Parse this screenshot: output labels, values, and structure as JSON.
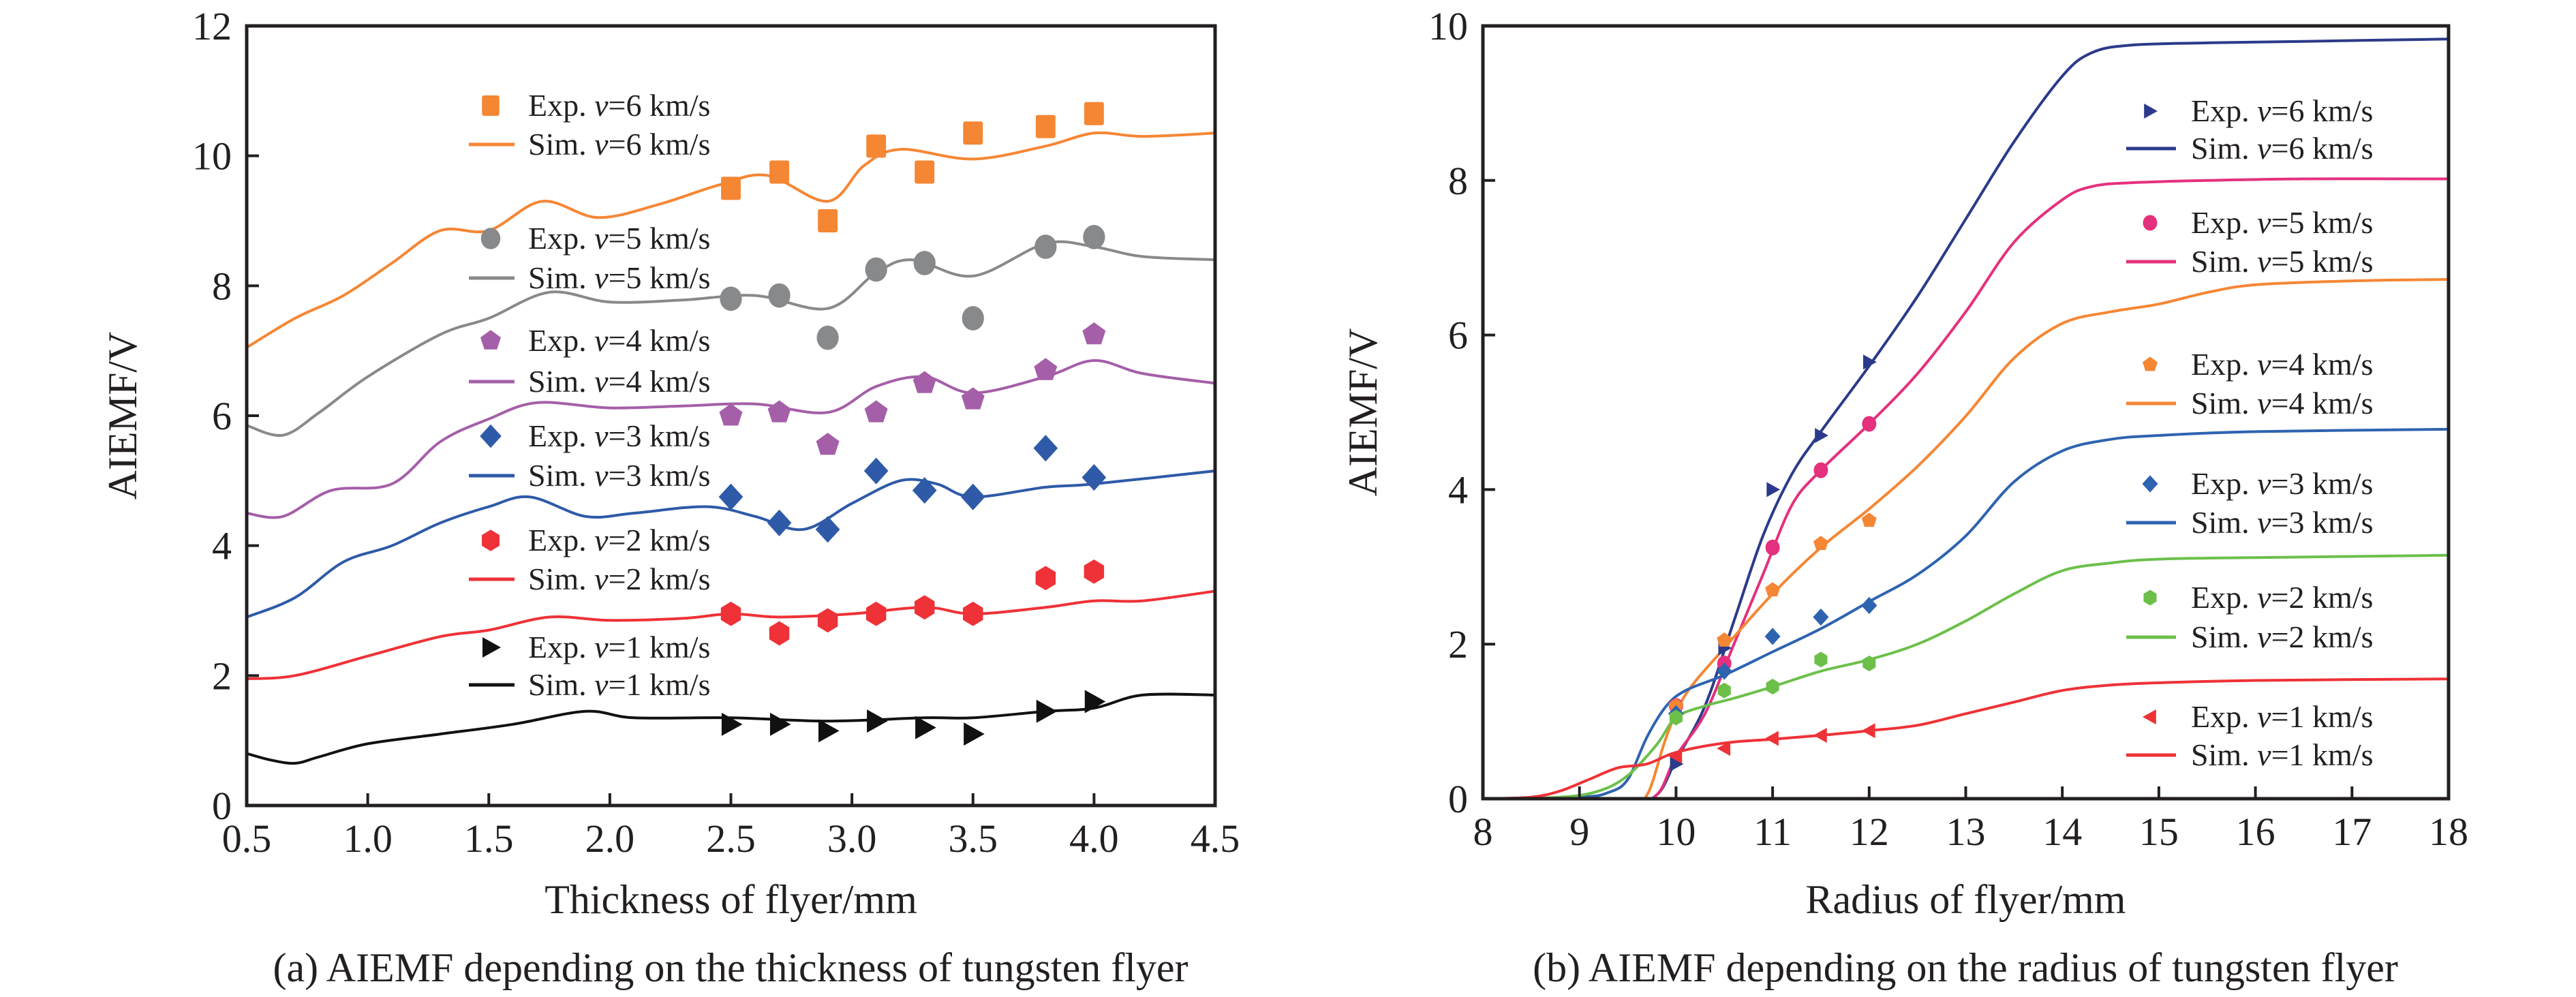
{
  "chart_data": [
    {
      "type": "line",
      "panel": "a",
      "title": "",
      "caption": "(a) AIEMF depending on the thickness of tungsten flyer",
      "xlabel": "Thickness of flyer/mm",
      "ylabel": "AIEMF/V",
      "xlim": [
        0.5,
        4.5
      ],
      "ylim": [
        0,
        12
      ],
      "xticks": [
        0.5,
        1.0,
        1.5,
        2.0,
        2.5,
        3.0,
        3.5,
        4.0,
        4.5
      ],
      "xtick_labels": [
        "0.5",
        "1.0",
        "1.5",
        "2.0",
        "2.5",
        "3.0",
        "3.5",
        "4.0",
        "4.5"
      ],
      "yticks": [
        0,
        2,
        4,
        6,
        8,
        10,
        12
      ],
      "ytick_labels": [
        "0",
        "2",
        "4",
        "6",
        "8",
        "10",
        "12"
      ],
      "grid": false,
      "legend_position": "top-left",
      "series": [
        {
          "velocity": "6",
          "color": "#f58634",
          "marker": "square",
          "exp_label": "Exp. ",
          "sim_label": "Sim. ",
          "v_symbol": "v",
          "v_suffix": "=6 km/s",
          "exp": {
            "x": [
              2.5,
              2.7,
              2.9,
              3.1,
              3.3,
              3.5,
              3.8,
              4.0
            ],
            "y": [
              9.5,
              9.75,
              9.0,
              10.15,
              9.75,
              10.35,
              10.45,
              10.65
            ]
          },
          "sim": {
            "x": [
              0.5,
              0.7,
              0.9,
              1.1,
              1.3,
              1.5,
              1.72,
              1.95,
              2.2,
              2.45,
              2.65,
              2.9,
              3.05,
              3.2,
              3.5,
              3.8,
              4.0,
              4.2,
              4.5
            ],
            "y": [
              7.05,
              7.5,
              7.85,
              8.35,
              8.85,
              8.85,
              9.3,
              9.05,
              9.25,
              9.55,
              9.7,
              9.3,
              9.85,
              10.1,
              9.95,
              10.15,
              10.35,
              10.3,
              10.35
            ]
          }
        },
        {
          "velocity": "5",
          "color": "#88898b",
          "marker": "circle",
          "exp_label": "Exp. ",
          "sim_label": "Sim. ",
          "v_symbol": "v",
          "v_suffix": "=5 km/s",
          "exp": {
            "x": [
              2.5,
              2.7,
              2.9,
              3.1,
              3.3,
              3.5,
              3.8,
              4.0
            ],
            "y": [
              7.8,
              7.85,
              7.2,
              8.25,
              8.35,
              7.5,
              8.6,
              8.75
            ]
          },
          "sim": {
            "x": [
              0.5,
              0.65,
              0.8,
              1.0,
              1.3,
              1.5,
              1.75,
              2.0,
              2.3,
              2.6,
              2.9,
              3.1,
              3.25,
              3.5,
              3.8,
              4.0,
              4.2,
              4.5
            ],
            "y": [
              5.85,
              5.7,
              6.05,
              6.6,
              7.25,
              7.5,
              7.9,
              7.75,
              7.78,
              7.85,
              7.65,
              8.2,
              8.4,
              8.15,
              8.65,
              8.6,
              8.45,
              8.4
            ]
          }
        },
        {
          "velocity": "4",
          "color": "#a55fa8",
          "marker": "pentagon",
          "exp_label": "Exp. ",
          "sim_label": "Sim. ",
          "v_symbol": "v",
          "v_suffix": "=4 km/s",
          "exp": {
            "x": [
              2.5,
              2.7,
              2.9,
              3.1,
              3.3,
              3.5,
              3.8,
              4.0
            ],
            "y": [
              6.0,
              6.05,
              5.55,
              6.05,
              6.5,
              6.25,
              6.7,
              7.25
            ]
          },
          "sim": {
            "x": [
              0.5,
              0.65,
              0.85,
              1.1,
              1.3,
              1.5,
              1.7,
              2.0,
              2.3,
              2.6,
              2.9,
              3.1,
              3.3,
              3.5,
              3.8,
              4.0,
              4.2,
              4.5
            ],
            "y": [
              4.5,
              4.45,
              4.85,
              4.95,
              5.6,
              5.95,
              6.2,
              6.12,
              6.15,
              6.18,
              6.05,
              6.45,
              6.6,
              6.35,
              6.6,
              6.85,
              6.65,
              6.5
            ]
          }
        },
        {
          "velocity": "3",
          "color": "#2e5aa8",
          "marker": "diamond",
          "exp_label": "Exp. ",
          "sim_label": "Sim. ",
          "v_symbol": "v",
          "v_suffix": "=3 km/s",
          "exp": {
            "x": [
              2.5,
              2.7,
              2.9,
              3.1,
              3.3,
              3.5,
              3.8,
              4.0
            ],
            "y": [
              4.75,
              4.35,
              4.25,
              5.15,
              4.85,
              4.75,
              5.5,
              5.05
            ]
          },
          "sim": {
            "x": [
              0.5,
              0.7,
              0.9,
              1.1,
              1.3,
              1.5,
              1.67,
              1.9,
              2.1,
              2.4,
              2.6,
              2.8,
              3.0,
              3.2,
              3.35,
              3.5,
              3.8,
              4.0,
              4.5
            ],
            "y": [
              2.9,
              3.2,
              3.75,
              4.0,
              4.35,
              4.6,
              4.75,
              4.45,
              4.5,
              4.6,
              4.45,
              4.25,
              4.65,
              5.0,
              4.95,
              4.75,
              4.9,
              4.95,
              5.15
            ]
          }
        },
        {
          "velocity": "2",
          "color": "#ee3237",
          "marker": "hexagon",
          "exp_label": "Exp. ",
          "sim_label": "Sim. ",
          "v_symbol": "v",
          "v_suffix": "=2 km/s",
          "exp": {
            "x": [
              2.5,
              2.7,
              2.9,
              3.1,
              3.3,
              3.5,
              3.8,
              4.0
            ],
            "y": [
              2.95,
              2.65,
              2.85,
              2.95,
              3.05,
              2.95,
              3.5,
              3.6
            ]
          },
          "sim": {
            "x": [
              0.5,
              0.7,
              1.0,
              1.3,
              1.5,
              1.75,
              2.0,
              2.3,
              2.5,
              2.7,
              3.0,
              3.3,
              3.5,
              3.8,
              4.0,
              4.2,
              4.5
            ],
            "y": [
              1.95,
              2.0,
              2.3,
              2.6,
              2.7,
              2.9,
              2.85,
              2.88,
              2.95,
              2.9,
              2.95,
              3.05,
              2.95,
              3.05,
              3.15,
              3.15,
              3.3
            ]
          }
        },
        {
          "velocity": "1",
          "color": "#111111",
          "marker": "triangle-right",
          "exp_label": "Exp. ",
          "sim_label": "Sim. ",
          "v_symbol": "v",
          "v_suffix": "=1 km/s",
          "exp": {
            "x": [
              2.5,
              2.7,
              2.9,
              3.1,
              3.3,
              3.5,
              3.8,
              4.0
            ],
            "y": [
              1.25,
              1.25,
              1.15,
              1.3,
              1.2,
              1.1,
              1.45,
              1.6
            ]
          },
          "sim": {
            "x": [
              0.5,
              0.6,
              0.7,
              0.8,
              1.0,
              1.3,
              1.6,
              1.9,
              2.1,
              2.5,
              2.9,
              3.3,
              3.5,
              3.8,
              4.0,
              4.2,
              4.5
            ],
            "y": [
              0.8,
              0.7,
              0.65,
              0.75,
              0.95,
              1.1,
              1.25,
              1.45,
              1.35,
              1.35,
              1.3,
              1.35,
              1.35,
              1.45,
              1.5,
              1.7,
              1.7
            ]
          }
        }
      ]
    },
    {
      "type": "line",
      "panel": "b",
      "title": "",
      "caption": "(b) AIEMF depending on the radius of tungsten flyer",
      "xlabel": "Radius of flyer/mm",
      "ylabel": "AIEMF/V",
      "xlim": [
        8,
        18
      ],
      "ylim": [
        0,
        10
      ],
      "xticks": [
        8,
        9,
        10,
        11,
        12,
        13,
        14,
        15,
        16,
        17,
        18
      ],
      "xtick_labels": [
        "8",
        "9",
        "10",
        "11",
        "12",
        "13",
        "14",
        "15",
        "16",
        "17",
        "18"
      ],
      "yticks": [
        0,
        2,
        4,
        6,
        8,
        10
      ],
      "ytick_labels": [
        "0",
        "2",
        "4",
        "6",
        "8",
        "10"
      ],
      "grid": false,
      "legend_position": "right",
      "series": [
        {
          "velocity": "6",
          "color": "#2b3a8a",
          "marker": "triangle-right",
          "exp_label": "Exp. ",
          "sim_label": "Sim. ",
          "v_symbol": "v",
          "v_suffix": "=6 km/s",
          "exp": {
            "x": [
              10,
              10.5,
              11,
              11.5,
              12
            ],
            "y": [
              0.45,
              1.95,
              4.0,
              4.7,
              5.65
            ]
          },
          "sim": {
            "x": [
              8,
              9.5,
              9.8,
              10.0,
              10.3,
              10.6,
              10.9,
              11.2,
              11.5,
              12.0,
              12.5,
              13.0,
              13.5,
              14.0,
              14.3,
              14.7,
              15.5,
              16.5,
              18
            ],
            "y": [
              0,
              0,
              0.05,
              0.5,
              1.2,
              2.3,
              3.4,
              4.2,
              4.75,
              5.6,
              6.5,
              7.5,
              8.5,
              9.35,
              9.65,
              9.75,
              9.78,
              9.8,
              9.83
            ]
          }
        },
        {
          "velocity": "5",
          "color": "#e5307d",
          "marker": "circle",
          "exp_label": "Exp. ",
          "sim_label": "Sim. ",
          "v_symbol": "v",
          "v_suffix": "=5 km/s",
          "exp": {
            "x": [
              10,
              10.5,
              11,
              11.5,
              12
            ],
            "y": [
              1.2,
              1.75,
              3.25,
              4.25,
              4.85
            ]
          },
          "sim": {
            "x": [
              8,
              9.5,
              9.8,
              10.0,
              10.3,
              10.6,
              10.9,
              11.2,
              11.5,
              12.0,
              12.5,
              13.0,
              13.5,
              14.0,
              14.3,
              14.7,
              15.5,
              16.5,
              18
            ],
            "y": [
              0,
              0,
              0.05,
              0.55,
              1.1,
              2.0,
              2.9,
              3.8,
              4.25,
              4.85,
              5.5,
              6.3,
              7.2,
              7.75,
              7.92,
              7.97,
              8.0,
              8.02,
              8.02
            ]
          }
        },
        {
          "velocity": "4",
          "color": "#f58634",
          "marker": "pentagon",
          "exp_label": "Exp. ",
          "sim_label": "Sim. ",
          "v_symbol": "v",
          "v_suffix": "=4 km/s",
          "exp": {
            "x": [
              10,
              10.5,
              11,
              11.5,
              12
            ],
            "y": [
              1.2,
              2.05,
              2.7,
              3.3,
              3.6
            ]
          },
          "sim": {
            "x": [
              8,
              9.5,
              9.7,
              9.9,
              10.1,
              10.5,
              11.0,
              11.5,
              12.0,
              12.5,
              13.0,
              13.5,
              14.0,
              14.5,
              15.0,
              15.5,
              16.0,
              17.0,
              18
            ],
            "y": [
              0,
              0,
              0.05,
              0.8,
              1.35,
              1.95,
              2.65,
              3.25,
              3.75,
              4.3,
              4.95,
              5.7,
              6.15,
              6.3,
              6.4,
              6.55,
              6.65,
              6.7,
              6.72
            ]
          }
        },
        {
          "velocity": "3",
          "color": "#2e63b0",
          "marker": "diamond",
          "exp_label": "Exp. ",
          "sim_label": "Sim. ",
          "v_symbol": "v",
          "v_suffix": "=3 km/s",
          "exp": {
            "x": [
              10,
              10.5,
              11,
              11.5,
              12
            ],
            "y": [
              1.1,
              1.65,
              2.1,
              2.35,
              2.5
            ]
          },
          "sim": {
            "x": [
              8,
              9.0,
              9.3,
              9.5,
              9.7,
              9.9,
              10.1,
              10.5,
              11.0,
              11.5,
              12.0,
              12.5,
              13.0,
              13.5,
              14.0,
              14.5,
              15.0,
              16.0,
              18
            ],
            "y": [
              0,
              0.02,
              0.08,
              0.25,
              0.8,
              1.2,
              1.4,
              1.6,
              1.9,
              2.2,
              2.55,
              2.9,
              3.4,
              4.1,
              4.5,
              4.65,
              4.7,
              4.75,
              4.78
            ]
          }
        },
        {
          "velocity": "2",
          "color": "#6cc04a",
          "marker": "hexagon",
          "exp_label": "Exp. ",
          "sim_label": "Sim. ",
          "v_symbol": "v",
          "v_suffix": "=2 km/s",
          "exp": {
            "x": [
              10,
              10.5,
              11,
              11.5,
              12
            ],
            "y": [
              1.05,
              1.4,
              1.45,
              1.8,
              1.75
            ]
          },
          "sim": {
            "x": [
              8,
              8.8,
              9.2,
              9.5,
              9.8,
              10.0,
              10.3,
              10.6,
              11.0,
              11.5,
              12.0,
              12.5,
              13.0,
              13.5,
              14.0,
              14.5,
              15.0,
              16.0,
              18
            ],
            "y": [
              0,
              0.02,
              0.1,
              0.3,
              0.7,
              1.05,
              1.2,
              1.3,
              1.45,
              1.65,
              1.8,
              2.0,
              2.3,
              2.65,
              2.95,
              3.05,
              3.1,
              3.12,
              3.15
            ]
          }
        },
        {
          "velocity": "1",
          "color": "#ee3237",
          "marker": "triangle-left",
          "exp_label": "Exp. ",
          "sim_label": "Sim. ",
          "v_symbol": "v",
          "v_suffix": "=1 km/s",
          "exp": {
            "x": [
              10,
              10.5,
              11,
              11.5,
              12
            ],
            "y": [
              0.55,
              0.65,
              0.78,
              0.82,
              0.88
            ]
          },
          "sim": {
            "x": [
              8,
              8.5,
              8.8,
              9.1,
              9.4,
              9.7,
              10.0,
              10.5,
              11.0,
              11.5,
              12.0,
              12.5,
              13.0,
              13.5,
              14.0,
              14.5,
              15.0,
              16.0,
              18
            ],
            "y": [
              0,
              0.02,
              0.1,
              0.25,
              0.4,
              0.45,
              0.6,
              0.72,
              0.77,
              0.82,
              0.88,
              0.95,
              1.1,
              1.25,
              1.4,
              1.47,
              1.5,
              1.53,
              1.55
            ]
          }
        }
      ]
    }
  ]
}
